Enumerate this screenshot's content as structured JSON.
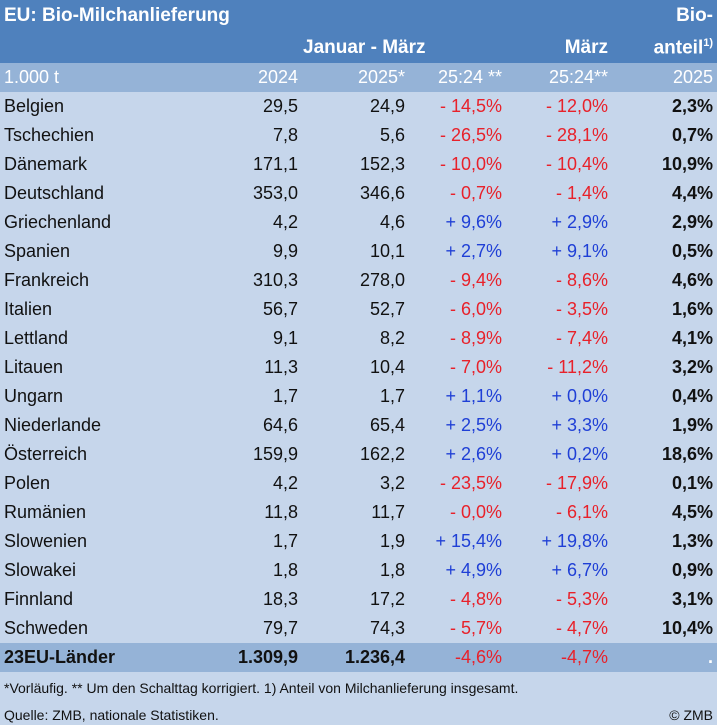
{
  "title": "EU: Bio-Milchanlieferung",
  "header": {
    "period_jan_mar": "Januar - März",
    "period_mar": "März",
    "share_line1": "Bio-",
    "share_line2": "anteil",
    "share_sup": "1)"
  },
  "units": {
    "unit": "1.000 t",
    "y2024": "2024",
    "y2025": "2025*",
    "ratio_jm": "25:24 **",
    "ratio_mar": "25:24**",
    "share_year": "2025"
  },
  "rows": [
    {
      "country": "Belgien",
      "v2024": "29,5",
      "v2025": "24,9",
      "jm": "- 14,5%",
      "mar": "- 12,0%",
      "share": "2,3%"
    },
    {
      "country": "Tschechien",
      "v2024": "7,8",
      "v2025": "5,6",
      "jm": "- 26,5%",
      "mar": "- 28,1%",
      "share": "0,7%"
    },
    {
      "country": "Dänemark",
      "v2024": "171,1",
      "v2025": "152,3",
      "jm": "- 10,0%",
      "mar": "- 10,4%",
      "share": "10,9%"
    },
    {
      "country": "Deutschland",
      "v2024": "353,0",
      "v2025": "346,6",
      "jm": "- 0,7%",
      "mar": "- 1,4%",
      "share": "4,4%"
    },
    {
      "country": "Griechenland",
      "v2024": "4,2",
      "v2025": "4,6",
      "jm": "+ 9,6%",
      "mar": "+ 2,9%",
      "share": "2,9%"
    },
    {
      "country": "Spanien",
      "v2024": "9,9",
      "v2025": "10,1",
      "jm": "+ 2,7%",
      "mar": "+ 9,1%",
      "share": "0,5%"
    },
    {
      "country": "Frankreich",
      "v2024": "310,3",
      "v2025": "278,0",
      "jm": "- 9,4%",
      "mar": "- 8,6%",
      "share": "4,6%"
    },
    {
      "country": "Italien",
      "v2024": "56,7",
      "v2025": "52,7",
      "jm": "- 6,0%",
      "mar": "- 3,5%",
      "share": "1,6%"
    },
    {
      "country": "Lettland",
      "v2024": "9,1",
      "v2025": "8,2",
      "jm": "- 8,9%",
      "mar": "- 7,4%",
      "share": "4,1%"
    },
    {
      "country": "Litauen",
      "v2024": "11,3",
      "v2025": "10,4",
      "jm": "- 7,0%",
      "mar": "- 11,2%",
      "share": "3,2%"
    },
    {
      "country": "Ungarn",
      "v2024": "1,7",
      "v2025": "1,7",
      "jm": "+ 1,1%",
      "mar": "+ 0,0%",
      "share": "0,4%"
    },
    {
      "country": "Niederlande",
      "v2024": "64,6",
      "v2025": "65,4",
      "jm": "+ 2,5%",
      "mar": "+ 3,3%",
      "share": "1,9%"
    },
    {
      "country": "Österreich",
      "v2024": "159,9",
      "v2025": "162,2",
      "jm": "+ 2,6%",
      "mar": "+ 0,2%",
      "share": "18,6%"
    },
    {
      "country": "Polen",
      "v2024": "4,2",
      "v2025": "3,2",
      "jm": "- 23,5%",
      "mar": "- 17,9%",
      "share": "0,1%"
    },
    {
      "country": "Rumänien",
      "v2024": "11,8",
      "v2025": "11,7",
      "jm": "- 0,0%",
      "mar": "- 6,1%",
      "share": "4,5%"
    },
    {
      "country": "Slowenien",
      "v2024": "1,7",
      "v2025": "1,9",
      "jm": "+ 15,4%",
      "mar": "+ 19,8%",
      "share": "1,3%"
    },
    {
      "country": "Slowakei",
      "v2024": "1,8",
      "v2025": "1,8",
      "jm": "+ 4,9%",
      "mar": "+ 6,7%",
      "share": "0,9%"
    },
    {
      "country": "Finnland",
      "v2024": "18,3",
      "v2025": "17,2",
      "jm": "- 4,8%",
      "mar": "- 5,3%",
      "share": "3,1%"
    },
    {
      "country": "Schweden",
      "v2024": "79,7",
      "v2025": "74,3",
      "jm": "- 5,7%",
      "mar": "- 4,7%",
      "share": "10,4%"
    }
  ],
  "total": {
    "country": "23EU-Länder",
    "v2024": "1.309,9",
    "v2025": "1.236,4",
    "jm": "-4,6%",
    "mar": "-4,7%",
    "share": "."
  },
  "footnote": "*Vorläufig. ** Um den Schalttag korrigiert. 1) Anteil von Milchanlieferung insgesamt.",
  "source": "Quelle: ZMB, nationale Statistiken.",
  "copyright": "© ZMB",
  "colors": {
    "header": "#4f81bd",
    "subheader": "#95b3d7",
    "body": "#c6d6eb",
    "negative": "#e8212a",
    "positive": "#1f3fd6"
  }
}
